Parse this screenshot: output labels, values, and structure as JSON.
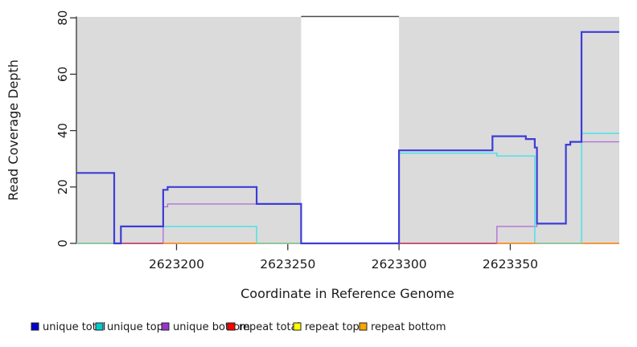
{
  "chart_data": {
    "type": "line",
    "step": true,
    "title": "",
    "xlabel": "Coordinate in Reference Genome",
    "ylabel": "Read Coverage Depth",
    "xlim": [
      2623155,
      2623399
    ],
    "ylim": [
      0,
      80
    ],
    "x_ticks": [
      2623200,
      2623250,
      2623300,
      2623350
    ],
    "y_ticks": [
      0,
      20,
      40,
      60,
      80
    ],
    "grid": false,
    "legend_position": "bottom",
    "shaded_regions": [
      {
        "from": 2623155,
        "to": 2623256,
        "color": "#DBDBDB"
      },
      {
        "from": 2623300,
        "to": 2623399,
        "color": "#DBDBDB"
      }
    ],
    "gap_region": {
      "from": 2623256,
      "to": 2623300,
      "top_border_color": "#4a4a4a"
    },
    "series": [
      {
        "name": "unique total",
        "color": "#0000CC",
        "line_color": "#3D3DD8",
        "width": 2.2,
        "steps": [
          [
            2623155,
            25
          ],
          [
            2623172,
            0
          ],
          [
            2623175,
            6
          ],
          [
            2623194,
            19
          ],
          [
            2623196,
            20
          ],
          [
            2623236,
            14
          ],
          [
            2623256,
            0
          ],
          [
            2623300,
            33
          ],
          [
            2623342,
            38
          ],
          [
            2623357,
            37
          ],
          [
            2623361,
            34
          ],
          [
            2623362,
            7
          ],
          [
            2623375,
            35
          ],
          [
            2623377,
            36
          ],
          [
            2623382,
            75
          ]
        ]
      },
      {
        "name": "unique top",
        "color": "#00CCCC",
        "line_color": "#3FE3EA",
        "width": 1.4,
        "steps": [
          [
            2623155,
            0
          ],
          [
            2623175,
            6
          ],
          [
            2623236,
            0
          ],
          [
            2623300,
            32
          ],
          [
            2623344,
            31
          ],
          [
            2623361,
            0
          ],
          [
            2623382,
            39
          ]
        ]
      },
      {
        "name": "unique bottom",
        "color": "#9933CC",
        "line_color": "#B273D6",
        "width": 1.4,
        "steps": [
          [
            2623155,
            0
          ],
          [
            2623194,
            13
          ],
          [
            2623196,
            14
          ],
          [
            2623256,
            0
          ],
          [
            2623344,
            6
          ],
          [
            2623362,
            7
          ],
          [
            2623375,
            35
          ],
          [
            2623377,
            36
          ]
        ]
      },
      {
        "name": "repeat total",
        "color": "#FF0000",
        "line_color": "#C84A6E",
        "width": 1.4,
        "steps": [
          [
            2623155,
            0
          ]
        ]
      },
      {
        "name": "repeat top",
        "color": "#FFFF00",
        "line_color": "#E6E600",
        "width": 1.4,
        "steps": [
          [
            2623155,
            0
          ]
        ]
      },
      {
        "name": "repeat bottom",
        "color": "#FFA500",
        "line_color": "#FF9E2E",
        "width": 1.4,
        "steps": [
          [
            2623155,
            0
          ]
        ]
      }
    ],
    "baseline_topmost": [
      {
        "from": 2623155,
        "to": 2623172,
        "color": "#94CE94"
      },
      {
        "from": 2623175,
        "to": 2623194,
        "color": "#C84A6E"
      },
      {
        "from": 2623194,
        "to": 2623236,
        "color": "#FF9E2E"
      },
      {
        "from": 2623236,
        "to": 2623256,
        "color": "#94CE94"
      },
      {
        "from": 2623300,
        "to": 2623344,
        "color": "#C84A6E"
      },
      {
        "from": 2623344,
        "to": 2623362,
        "color": "#FF9E2E"
      },
      {
        "from": 2623362,
        "to": 2623382,
        "color": "#94CE94"
      },
      {
        "from": 2623382,
        "to": 2623399,
        "color": "#FF9E2E"
      }
    ]
  }
}
